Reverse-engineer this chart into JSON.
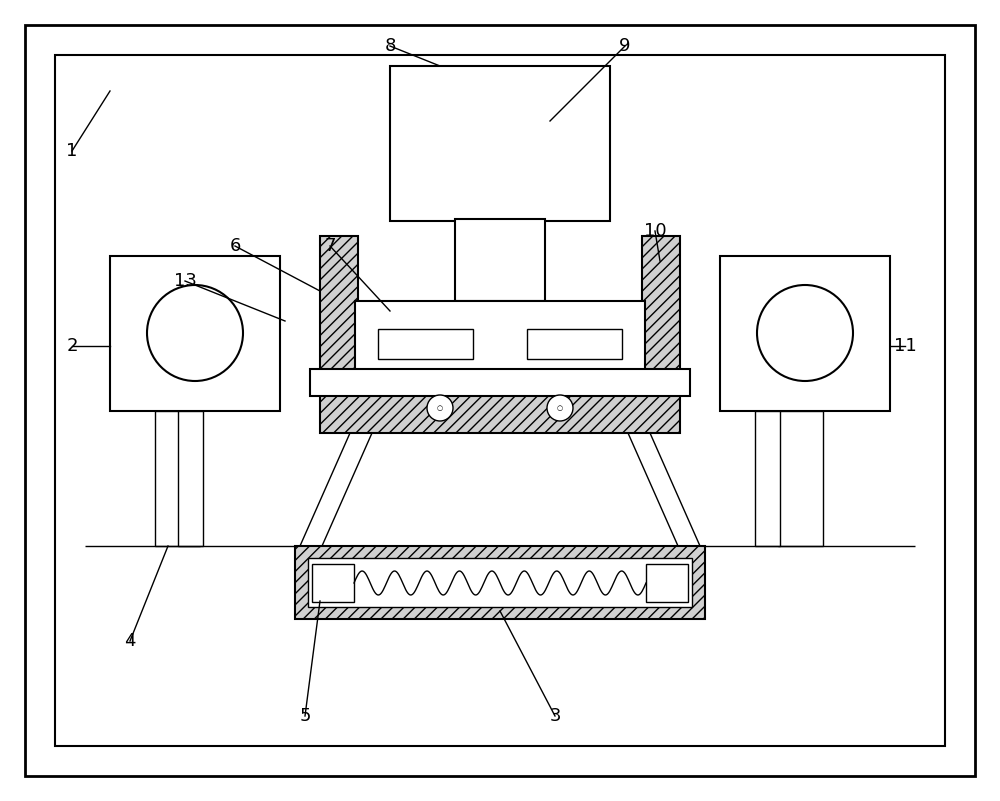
{
  "bg_color": "#ffffff",
  "lw_thick": 2.0,
  "lw_med": 1.5,
  "lw_thin": 1.0,
  "hatch_pattern": "///",
  "hatch_color": "#aaaaaa",
  "labels": [
    "1",
    "2",
    "3",
    "4",
    "5",
    "6",
    "7",
    "8",
    "9",
    "10",
    "11",
    "13"
  ]
}
